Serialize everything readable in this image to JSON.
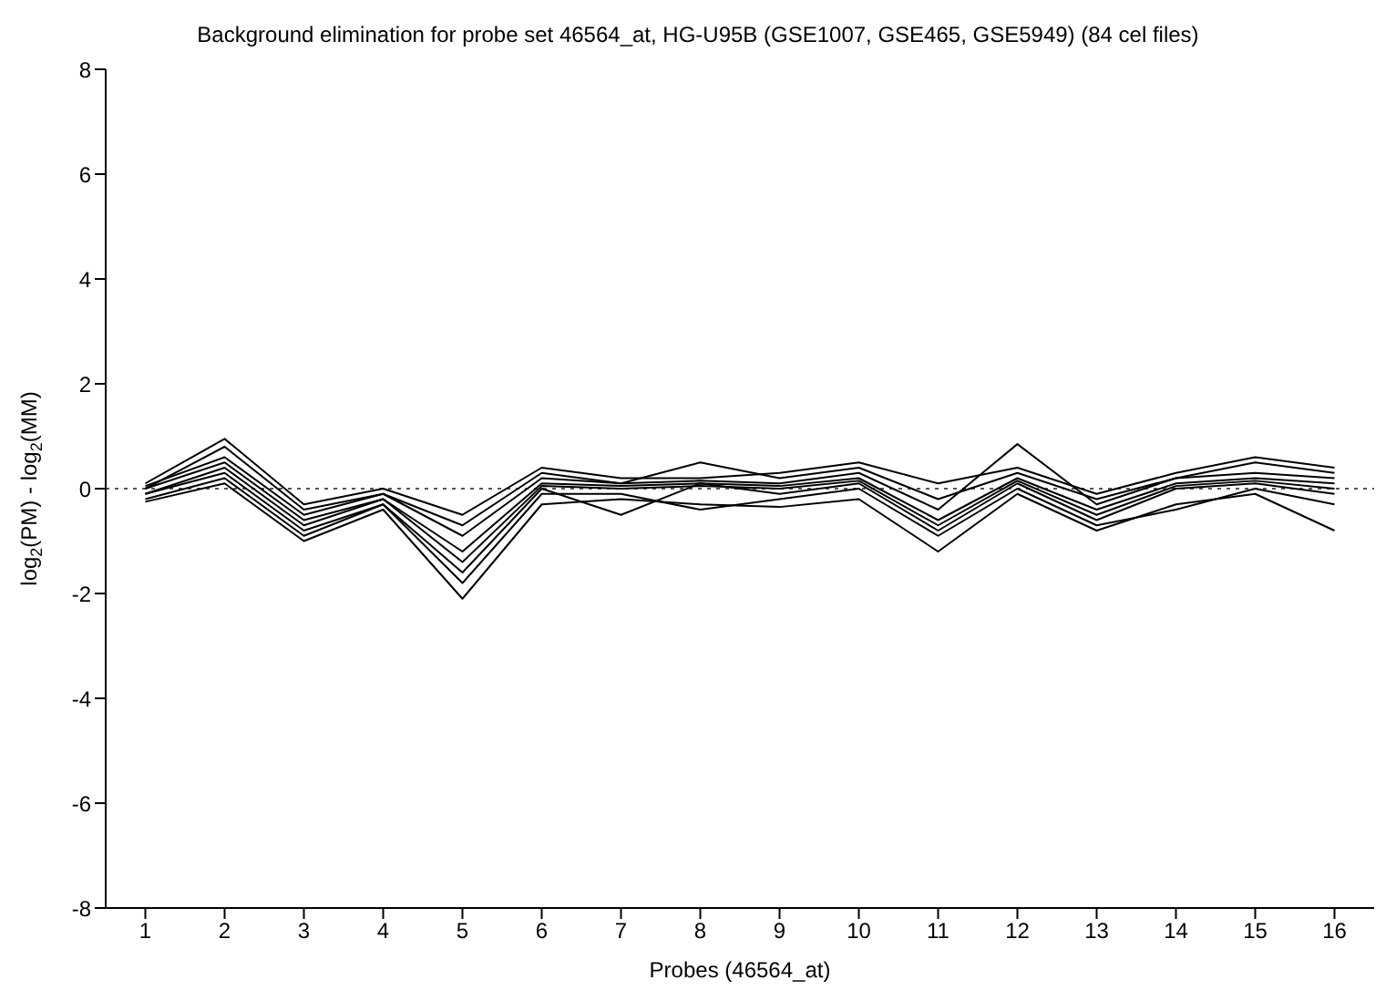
{
  "chart_data": {
    "type": "line",
    "title": "Background elimination for probe set 46564_at, HG-U95B (GSE1007, GSE465, GSE5949) (84 cel files)",
    "xlabel": "Probes (46564_at)",
    "ylabel": "log$_{2}$(PM) - log$_{2}$(MM)",
    "x": [
      1,
      2,
      3,
      4,
      5,
      6,
      7,
      8,
      9,
      10,
      11,
      12,
      13,
      14,
      15,
      16
    ],
    "xlim": [
      0.5,
      16.5
    ],
    "xticks": [
      1,
      2,
      3,
      4,
      5,
      6,
      7,
      8,
      9,
      10,
      11,
      12,
      13,
      14,
      15,
      16
    ],
    "ylim": [
      -8,
      8
    ],
    "yticks": [
      -8,
      -6,
      -4,
      -2,
      0,
      2,
      4,
      6,
      8
    ],
    "grid": false,
    "legend": false,
    "marker": "none",
    "line_style": "solid",
    "ref_lines": [
      {
        "axis": "y",
        "value": 0,
        "color": "#555555",
        "line_style": "dotted"
      }
    ],
    "series": [
      {
        "color": "#000000",
        "values": [
          0.1,
          0.95,
          -0.3,
          0,
          -0.5,
          0.4,
          0.2,
          0.2,
          0.3,
          0.5,
          0.1,
          0.4,
          -0.1,
          0.3,
          0.6,
          0.4
        ]
      },
      {
        "color": "#000000",
        "values": [
          0,
          0.8,
          -0.4,
          -0.1,
          -0.7,
          0.3,
          0.1,
          0.5,
          0.2,
          0.4,
          -0.2,
          0.3,
          -0.2,
          0.2,
          0.5,
          0.3
        ]
      },
      {
        "color": "#000000",
        "values": [
          0.05,
          0.6,
          -0.5,
          -0.1,
          -0.9,
          0.2,
          0.1,
          0.15,
          0.1,
          0.3,
          -0.4,
          0.85,
          -0.3,
          0.2,
          0.3,
          0.2
        ]
      },
      {
        "color": "#000000",
        "values": [
          0,
          0.5,
          -0.6,
          -0.2,
          -1.2,
          0.1,
          0.05,
          0.1,
          0.05,
          0.2,
          -0.6,
          0.2,
          -0.4,
          0.1,
          0.2,
          0.1
        ]
      },
      {
        "color": "#000000",
        "values": [
          -0.1,
          0.4,
          -0.7,
          -0.2,
          -1.4,
          0.05,
          0,
          0.05,
          0,
          0.15,
          -0.7,
          0.15,
          -0.5,
          0.05,
          0.15,
          0
        ]
      },
      {
        "color": "#000000",
        "values": [
          -0.1,
          0.3,
          -0.8,
          -0.3,
          -1.6,
          0,
          -0.5,
          0.1,
          -0.1,
          0.1,
          -0.8,
          0.1,
          -0.6,
          0,
          0.1,
          -0.1
        ]
      },
      {
        "color": "#000000",
        "values": [
          -0.2,
          0.2,
          -0.9,
          -0.3,
          -1.8,
          -0.1,
          -0.1,
          -0.4,
          -0.2,
          0,
          -0.9,
          0,
          -0.7,
          -0.4,
          0,
          -0.3
        ]
      },
      {
        "color": "#000000",
        "values": [
          -0.25,
          0.1,
          -1.0,
          -0.4,
          -2.1,
          -0.3,
          -0.2,
          -0.3,
          -0.35,
          -0.2,
          -1.2,
          -0.1,
          -0.8,
          -0.3,
          -0.1,
          -0.8
        ]
      }
    ]
  }
}
